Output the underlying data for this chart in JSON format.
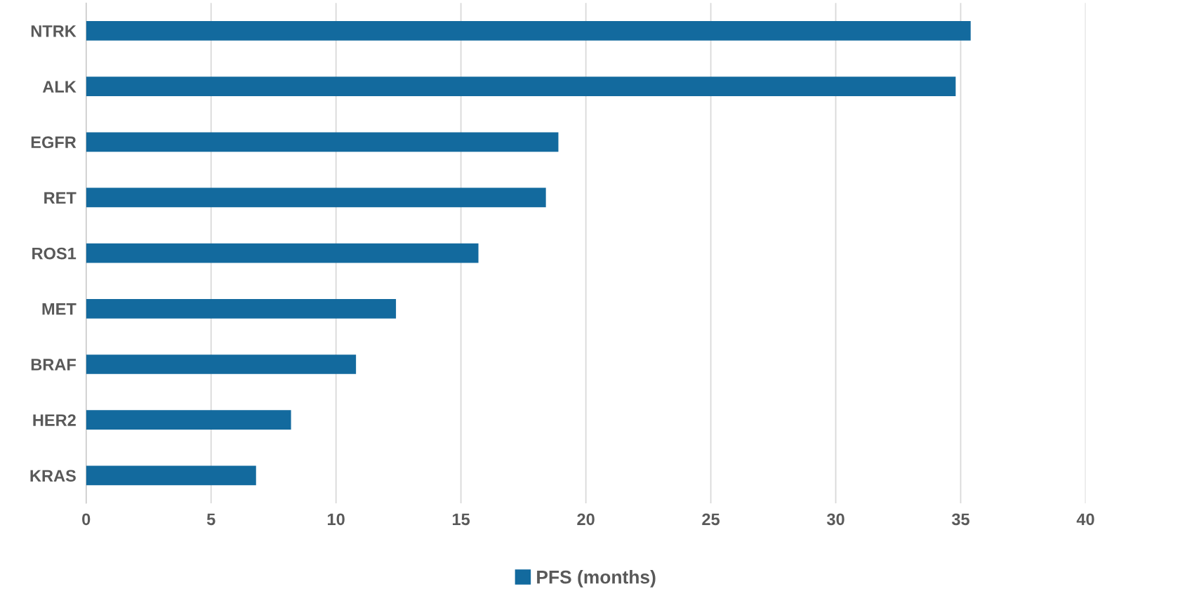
{
  "chart_data": {
    "type": "bar",
    "orientation": "horizontal",
    "categories": [
      "NTRK",
      "ALK",
      "EGFR",
      "RET",
      "ROS1",
      "MET",
      "BRAF",
      "HER2",
      "KRAS"
    ],
    "series": [
      {
        "name": "PFS (months)",
        "color": "#136a9e",
        "values": [
          35.4,
          34.8,
          18.9,
          18.4,
          15.7,
          12.4,
          10.8,
          8.2,
          6.8
        ]
      }
    ],
    "xlim": [
      0,
      40
    ],
    "xticks": [
      0,
      5,
      10,
      15,
      20,
      25,
      30,
      35,
      40
    ],
    "grid": "x",
    "legend": "bottom"
  }
}
